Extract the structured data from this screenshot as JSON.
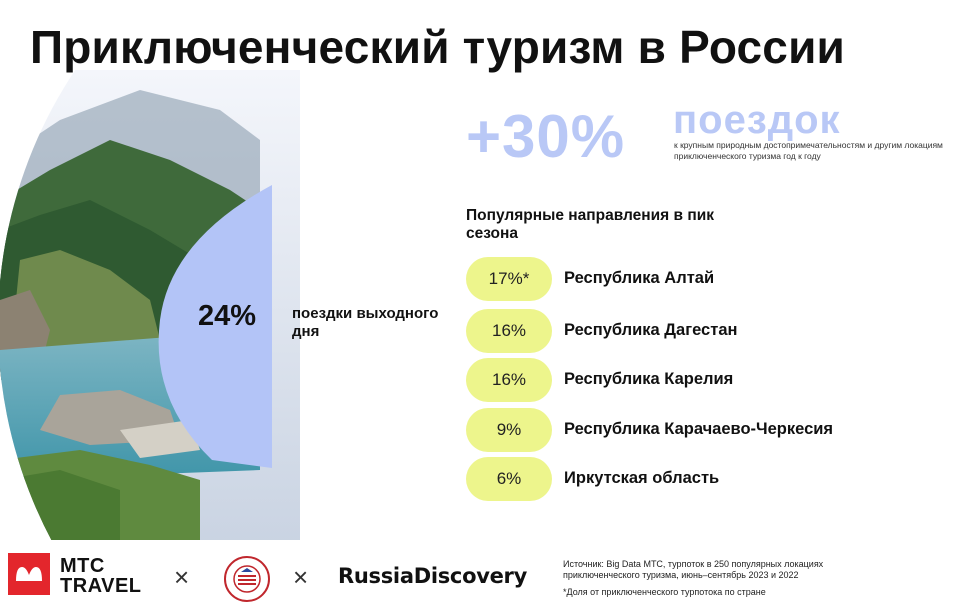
{
  "title": "Приключенческий туризм в России",
  "donut": {
    "value": "24%",
    "label": "поездки выходного дня",
    "fraction": 0.24
  },
  "highlight": {
    "value": "+30%",
    "word": "поездок",
    "note": "к крупным природным достопримечательностям и другим локациям приключенческого туризма год к году"
  },
  "destinations": {
    "heading": "Популярные направления в пик сезона",
    "items": [
      {
        "pct": "17%*",
        "name": "Республика Алтай"
      },
      {
        "pct": "16%",
        "name": "Республика Дагестан"
      },
      {
        "pct": "16%",
        "name": "Республика Карелия"
      },
      {
        "pct": "9%",
        "name": "Республика Карачаево-Черкесия"
      },
      {
        "pct": "6%",
        "name": "Иркутская область"
      }
    ]
  },
  "footer": {
    "logo_line1": "МТС",
    "logo_line2": "TRAVEL",
    "separator": "×",
    "partner": "RussiaDiscovery",
    "source": "Источник: Big Data МТС, турпоток в 250 популярных локациях приключенческого туризма, июнь–сентябрь 2023 и 2022",
    "footnote": "*Доля от приключенческого турпотока по стране"
  },
  "colors": {
    "accent_blue": "#b9c8f6",
    "donut_blue": "#b3c4f7",
    "pill_yellow": "#edf58c",
    "brand_red": "#e3262c"
  }
}
